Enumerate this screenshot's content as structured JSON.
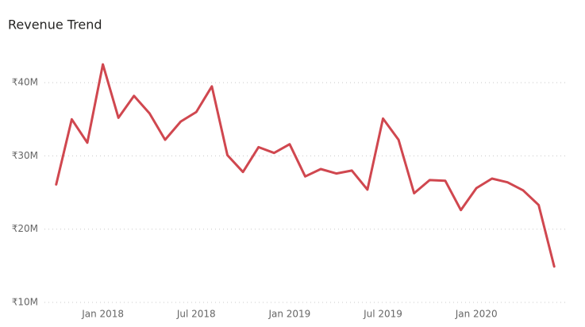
{
  "chart_data": {
    "type": "line",
    "title": "Revenue Trend",
    "categories": [
      null,
      null,
      null,
      "Jan 2018",
      null,
      null,
      null,
      null,
      null,
      "Jul 2018",
      null,
      null,
      null,
      null,
      null,
      "Jan 2019",
      null,
      null,
      null,
      null,
      null,
      "Jul 2019",
      null,
      null,
      null,
      null,
      null,
      "Jan 2020",
      null,
      null,
      null,
      null,
      null
    ],
    "values": [
      26.1,
      35.0,
      31.8,
      42.5,
      35.2,
      38.2,
      35.8,
      32.2,
      34.7,
      36.0,
      39.5,
      30.1,
      27.8,
      31.2,
      30.4,
      31.6,
      27.2,
      28.2,
      27.6,
      28.0,
      25.4,
      35.1,
      32.2,
      24.9,
      26.7,
      26.6,
      22.6,
      25.6,
      26.9,
      26.4,
      25.3,
      23.3,
      14.9
    ],
    "color": "#d0474f",
    "ylim": [
      10,
      45
    ],
    "yticks": [
      {
        "value": 10,
        "label": "₹10M"
      },
      {
        "value": 20,
        "label": "₹20M"
      },
      {
        "value": 30,
        "label": "₹30M"
      },
      {
        "value": 40,
        "label": "₹40M"
      }
    ],
    "grid": true
  }
}
